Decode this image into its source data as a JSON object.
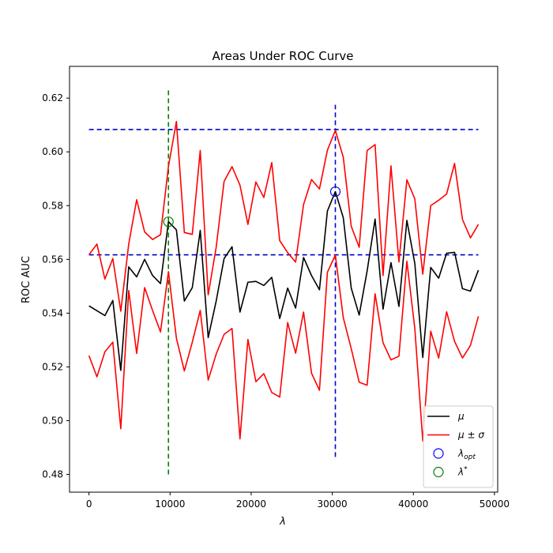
{
  "chart_data": {
    "type": "line",
    "title": "Areas Under ROC Curve",
    "xlabel": "λ",
    "ylabel": "ROC AUC",
    "xlim": [
      -2400,
      50400
    ],
    "ylim": [
      0.4734,
      0.6318
    ],
    "xticks": [
      0,
      10000,
      20000,
      30000,
      40000,
      50000
    ],
    "xtick_labels": [
      "0",
      "10000",
      "20000",
      "30000",
      "40000",
      "50000"
    ],
    "yticks": [
      0.48,
      0.5,
      0.52,
      0.54,
      0.56,
      0.58,
      0.6,
      0.62
    ],
    "ytick_labels": [
      "0.48",
      "0.50",
      "0.52",
      "0.54",
      "0.56",
      "0.58",
      "0.60",
      "0.62"
    ],
    "grid": false,
    "legend_position": "lower-right",
    "legend": [
      {
        "label_main": "μ",
        "label_sub": "",
        "label_sup": "",
        "kind": "line",
        "color": "#000000"
      },
      {
        "label_main": "μ ± σ",
        "label_sub": "",
        "label_sup": "",
        "kind": "line",
        "color": "#ff0000"
      },
      {
        "label_main": "λ",
        "label_sub": "opt",
        "label_sup": "",
        "kind": "circle",
        "color": "#0000ff"
      },
      {
        "label_main": "λ",
        "label_sub": "",
        "label_sup": "*",
        "kind": "circle",
        "color": "#008000"
      }
    ],
    "x": [
      0,
      980,
      1960,
      2940,
      3920,
      4900,
      5880,
      6860,
      7840,
      8820,
      9800,
      10780,
      11760,
      12740,
      13720,
      14700,
      15680,
      16660,
      17640,
      18620,
      19600,
      20580,
      21560,
      22540,
      23520,
      24500,
      25480,
      26460,
      27440,
      28420,
      29400,
      30380,
      31360,
      32340,
      33320,
      34300,
      35280,
      36260,
      37240,
      38220,
      39200,
      40180,
      41160,
      42140,
      43120,
      44100,
      45080,
      46060,
      47040,
      48020
    ],
    "series": [
      {
        "key": "mean",
        "color": "#000000",
        "values": [
          0.5427,
          0.5409,
          0.5391,
          0.5447,
          0.5187,
          0.5572,
          0.5535,
          0.56,
          0.554,
          0.551,
          0.574,
          0.571,
          0.5445,
          0.5495,
          0.5708,
          0.5309,
          0.5444,
          0.5603,
          0.5647,
          0.5404,
          0.5515,
          0.5518,
          0.5503,
          0.5533,
          0.538,
          0.5493,
          0.5419,
          0.5607,
          0.554,
          0.5487,
          0.578,
          0.5852,
          0.5755,
          0.5493,
          0.5393,
          0.5557,
          0.575,
          0.5415,
          0.5588,
          0.5425,
          0.5745,
          0.5585,
          0.5235,
          0.557,
          0.553,
          0.5623,
          0.5626,
          0.5491,
          0.5482,
          0.556
        ]
      },
      {
        "key": "upper",
        "color": "#ff0000",
        "values": [
          0.5617,
          0.5657,
          0.5527,
          0.5603,
          0.5407,
          0.5657,
          0.5822,
          0.5702,
          0.5674,
          0.5692,
          0.5946,
          0.6113,
          0.57,
          0.5693,
          0.6005,
          0.5468,
          0.5644,
          0.589,
          0.5945,
          0.5876,
          0.573,
          0.5888,
          0.583,
          0.596,
          0.567,
          0.5625,
          0.559,
          0.5804,
          0.5897,
          0.5862,
          0.6006,
          0.608,
          0.598,
          0.5723,
          0.5645,
          0.6005,
          0.6027,
          0.554,
          0.5948,
          0.559,
          0.5896,
          0.5825,
          0.5545,
          0.58,
          0.582,
          0.5843,
          0.5957,
          0.5748,
          0.568,
          0.573
        ]
      },
      {
        "key": "lower",
        "color": "#ff0000",
        "values": [
          0.5242,
          0.5163,
          0.5256,
          0.5292,
          0.497,
          0.5484,
          0.525,
          0.5495,
          0.541,
          0.533,
          0.5554,
          0.5307,
          0.5185,
          0.5292,
          0.541,
          0.5151,
          0.5247,
          0.5321,
          0.5343,
          0.4932,
          0.5302,
          0.5145,
          0.5175,
          0.5105,
          0.5088,
          0.5365,
          0.5251,
          0.5404,
          0.5177,
          0.5113,
          0.5552,
          0.5616,
          0.5383,
          0.5268,
          0.5143,
          0.5132,
          0.5472,
          0.529,
          0.5226,
          0.524,
          0.5593,
          0.5343,
          0.4925,
          0.5333,
          0.5233,
          0.5405,
          0.5295,
          0.5233,
          0.528,
          0.5388
        ]
      }
    ],
    "reference_lines": [
      {
        "orientation": "horizontal",
        "y": 0.6083,
        "x_range": [
          0,
          48020
        ],
        "color": "#0000cc",
        "style": "dashed"
      },
      {
        "orientation": "horizontal",
        "y": 0.5617,
        "x_range": [
          0,
          48020
        ],
        "color": "#0000cc",
        "style": "dashed"
      },
      {
        "orientation": "vertical",
        "x": 9800,
        "y_range": [
          0.48,
          0.624
        ],
        "color": "#008000",
        "style": "dashed"
      },
      {
        "orientation": "vertical",
        "x": 30380,
        "y_range": [
          0.4865,
          0.6175
        ],
        "color": "#0000cc",
        "style": "dashed"
      }
    ],
    "markers": [
      {
        "name": "lambda-opt",
        "x": 30380,
        "y": 0.5852,
        "color": "#0000ff"
      },
      {
        "name": "lambda-star",
        "x": 9800,
        "y": 0.574,
        "color": "#008000"
      }
    ]
  }
}
